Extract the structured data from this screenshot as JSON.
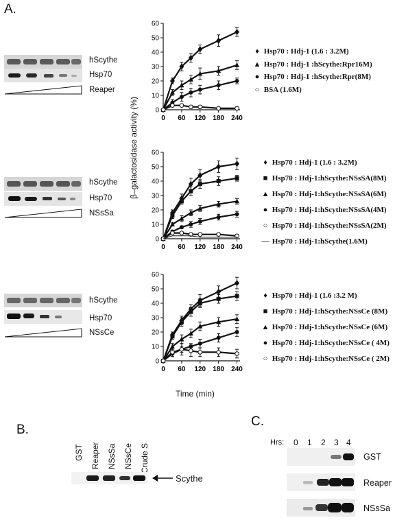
{
  "panel_labels": {
    "a": "A.",
    "b": "B.",
    "c": "C."
  },
  "panel_a": {
    "rows": [
      {
        "blot_labels": [
          "hScythe",
          "Hsp70"
        ],
        "titration_label": "Reaper",
        "legend": [
          {
            "symbol": "♦",
            "text": "Hsp70 : Hdj-1 (1.6 : 3.2M)"
          },
          {
            "symbol": "▲",
            "text": "Hsp70 : Hdj-1 :hScythe:Rpr16M)"
          },
          {
            "symbol": "●",
            "text": "Hsp70 : Hdj-1 :hScythe:Rpr(8M)"
          },
          {
            "symbol": "○",
            "text": "BSA (1.6M)"
          }
        ]
      },
      {
        "blot_labels": [
          "hScythe",
          "Hsp70"
        ],
        "titration_label": "NSsSa",
        "legend": [
          {
            "symbol": "♦",
            "text": "Hsp70 : Hdj-1 (1.6 : 3.2M)"
          },
          {
            "symbol": "■",
            "text": "Hsp70 : Hdj-1:hScythe:NSsSA(8M)"
          },
          {
            "symbol": "▲",
            "text": "Hsp70 : Hdj-1:hScythe:NSsSA(6M)"
          },
          {
            "symbol": "●",
            "text": "Hsp70 : Hdj-1:hScythe:NSsSA(4M)"
          },
          {
            "symbol": "○",
            "text": "Hsp70 : Hdj-1:hScythe:NSsSA(2M)"
          },
          {
            "symbol": "—",
            "text": "Hsp70 : Hdj-1:hScythe(1.6M)"
          }
        ]
      },
      {
        "blot_labels": [
          "hScythe",
          "Hsp70"
        ],
        "titration_label": "NSsCe",
        "legend": [
          {
            "symbol": "♦",
            "text": "Hsp70 : Hdj-1 (1.6 :3.2 M)"
          },
          {
            "symbol": "■",
            "text": "Hsp70 : Hdj-1:hScythe:NSsCe (8M)"
          },
          {
            "symbol": "▲",
            "text": "Hsp70 : Hdj-1:hScythe:NSsCe (6M)"
          },
          {
            "symbol": "●",
            "text": "Hsp70 : Hdj-1:hScythe:NSsCe ( 4M)"
          },
          {
            "symbol": "○",
            "text": "Hsp70 : Hdj-1:hScythe:NSsCe ( 2M)"
          }
        ]
      }
    ],
    "shared_ylabel": "β–galactosidase activity (%)",
    "shared_xlabel": "Time (min)"
  },
  "panel_b": {
    "lanes": [
      "GST",
      "Reaper",
      "NSsSa",
      "NSsCe",
      "Crude S"
    ],
    "arrow_label": "Scythe"
  },
  "panel_c": {
    "hrs_label": "Hrs:",
    "timepoints": [
      "0",
      "1",
      "2",
      "3",
      "4"
    ],
    "rows": [
      "GST",
      "Reaper",
      "NSsSa"
    ]
  },
  "chart_data": [
    {
      "type": "line",
      "x": [
        0,
        30,
        60,
        90,
        120,
        180,
        240
      ],
      "xticks": [
        "0",
        "60",
        "120",
        "180",
        "240"
      ],
      "yticks": [
        "0",
        "10",
        "20",
        "30",
        "40",
        "50",
        "60"
      ],
      "ylim": [
        0,
        60
      ],
      "xlim": [
        0,
        250
      ],
      "series": [
        {
          "name": "Hsp70 : Hdj-1 (1.6 : 3.2M)",
          "marker": "diamond",
          "values": [
            0,
            20,
            30,
            36,
            42,
            48,
            54
          ],
          "err": [
            1,
            2,
            3,
            3,
            3,
            4,
            3
          ]
        },
        {
          "name": "Hsp70 : Hdj-1 :hScythe:Rpr16M)",
          "marker": "triangle",
          "values": [
            0,
            12,
            17,
            21,
            25,
            27,
            31
          ],
          "err": [
            1,
            2,
            3,
            3,
            4,
            3,
            3
          ]
        },
        {
          "name": "Hsp70 : Hdj-1 :hScythe:Rpr(8M)",
          "marker": "circle",
          "values": [
            0,
            5,
            9,
            12,
            14,
            17,
            20
          ],
          "err": [
            1,
            2,
            3,
            3,
            3,
            3,
            2
          ]
        },
        {
          "name": "BSA (1.6M)",
          "marker": "open-circle",
          "values": [
            0,
            3,
            3,
            2,
            2,
            1,
            1
          ],
          "err": [
            0,
            1,
            1,
            1,
            1,
            1,
            1
          ]
        }
      ]
    },
    {
      "type": "line",
      "x": [
        0,
        30,
        60,
        90,
        120,
        180,
        240
      ],
      "xticks": [
        "0",
        "60",
        "120",
        "180",
        "240"
      ],
      "yticks": [
        "0",
        "10",
        "20",
        "30",
        "40",
        "50",
        "60"
      ],
      "ylim": [
        0,
        60
      ],
      "xlim": [
        0,
        250
      ],
      "series": [
        {
          "name": "Hsp70 : Hdj-1 (1.6 : 3.2M)",
          "marker": "diamond",
          "values": [
            0,
            18,
            28,
            38,
            44,
            50,
            52
          ],
          "err": [
            1,
            2,
            3,
            4,
            4,
            4,
            4
          ]
        },
        {
          "name": "Hsp70 : Hdj-1:hScythe:NSsSA(8M)",
          "marker": "square",
          "values": [
            0,
            16,
            26,
            33,
            38,
            40,
            42
          ],
          "err": [
            1,
            2,
            2,
            3,
            3,
            3,
            2
          ]
        },
        {
          "name": "Hsp70 : Hdj-1:hScythe:NSsSA(6M)",
          "marker": "triangle",
          "values": [
            0,
            10,
            14,
            18,
            21,
            24,
            26
          ],
          "err": [
            1,
            1,
            2,
            2,
            2,
            2,
            2
          ]
        },
        {
          "name": "Hsp70 : Hdj-1:hScythe:NSsSA(4M)",
          "marker": "circle",
          "values": [
            0,
            5,
            8,
            10,
            12,
            15,
            17
          ],
          "err": [
            1,
            1,
            1,
            2,
            2,
            2,
            2
          ]
        },
        {
          "name": "Hsp70 : Hdj-1:hScythe:NSsSA(2M)",
          "marker": "open-circle",
          "values": [
            0,
            4,
            4,
            3,
            3,
            3,
            2
          ],
          "err": [
            0,
            1,
            1,
            1,
            1,
            1,
            1
          ]
        },
        {
          "name": "Hsp70 : Hdj-1:hScythe(1.6M)",
          "marker": "none",
          "values": [
            0,
            2,
            2,
            2,
            1,
            1,
            1
          ],
          "err": [
            0,
            0,
            0,
            0,
            0,
            0,
            0
          ]
        }
      ]
    },
    {
      "type": "line",
      "x": [
        0,
        30,
        60,
        90,
        120,
        180,
        240
      ],
      "xticks": [
        "0",
        "60",
        "120",
        "180",
        "240"
      ],
      "yticks": [
        "0",
        "10",
        "20",
        "30",
        "40",
        "50",
        "60"
      ],
      "ylim": [
        0,
        60
      ],
      "xlim": [
        0,
        250
      ],
      "series": [
        {
          "name": "Hsp70 : Hdj-1 (1.6 :3.2 M)",
          "marker": "diamond",
          "values": [
            0,
            18,
            28,
            36,
            42,
            48,
            54
          ],
          "err": [
            1,
            2,
            3,
            3,
            4,
            4,
            4
          ]
        },
        {
          "name": "Hsp70 : Hdj-1:hScythe:NSsCe (8M)",
          "marker": "square",
          "values": [
            0,
            17,
            27,
            34,
            40,
            43,
            45
          ],
          "err": [
            1,
            2,
            3,
            3,
            3,
            3,
            3
          ]
        },
        {
          "name": "Hsp70 : Hdj-1:hScythe:NSsCe (6M)",
          "marker": "triangle",
          "values": [
            0,
            10,
            15,
            19,
            24,
            27,
            29
          ],
          "err": [
            1,
            2,
            3,
            3,
            3,
            3,
            3
          ]
        },
        {
          "name": "Hsp70 : Hdj-1:hScythe:NSsCe ( 4M)",
          "marker": "circle",
          "values": [
            0,
            5,
            8,
            10,
            12,
            16,
            20
          ],
          "err": [
            1,
            2,
            2,
            2,
            3,
            3,
            3
          ]
        },
        {
          "name": "Hsp70 : Hdj-1:hScythe:NSsCe ( 2M)",
          "marker": "open-circle",
          "values": [
            0,
            6,
            8,
            7,
            6,
            6,
            5
          ],
          "err": [
            1,
            3,
            4,
            4,
            3,
            3,
            3
          ]
        }
      ]
    }
  ]
}
